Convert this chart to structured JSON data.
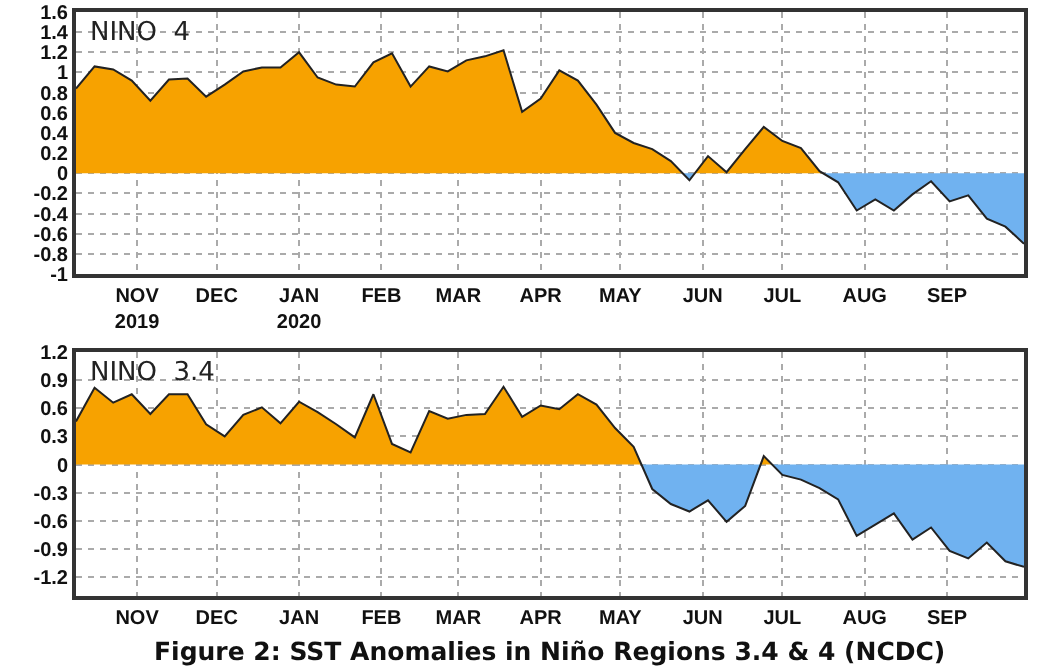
{
  "chart_data": [
    {
      "type": "area",
      "title": "NINO  4",
      "x": [
        "2019-10-09",
        "2019-10-16",
        "2019-10-23",
        "2019-10-30",
        "2019-11-06",
        "2019-11-13",
        "2019-11-20",
        "2019-11-27",
        "2019-12-04",
        "2019-12-11",
        "2019-12-18",
        "2019-12-25",
        "2020-01-01",
        "2020-01-08",
        "2020-01-15",
        "2020-01-22",
        "2020-01-29",
        "2020-02-05",
        "2020-02-12",
        "2020-02-19",
        "2020-02-26",
        "2020-03-04",
        "2020-03-11",
        "2020-03-18",
        "2020-03-25",
        "2020-04-01",
        "2020-04-08",
        "2020-04-15",
        "2020-04-22",
        "2020-04-29",
        "2020-05-06",
        "2020-05-13",
        "2020-05-20",
        "2020-05-27",
        "2020-06-03",
        "2020-06-10",
        "2020-06-17",
        "2020-06-24",
        "2020-07-01",
        "2020-07-08",
        "2020-07-15",
        "2020-07-22",
        "2020-07-29",
        "2020-08-05",
        "2020-08-12",
        "2020-08-19",
        "2020-08-26",
        "2020-09-02",
        "2020-09-09",
        "2020-09-16",
        "2020-09-23",
        "2020-09-30"
      ],
      "values": [
        0.84,
        1.06,
        1.03,
        0.92,
        0.72,
        0.93,
        0.94,
        0.76,
        0.88,
        1.01,
        1.05,
        1.05,
        1.2,
        0.95,
        0.88,
        0.86,
        1.1,
        1.19,
        0.86,
        1.06,
        1.01,
        1.12,
        1.16,
        1.22,
        0.61,
        0.74,
        1.02,
        0.92,
        0.68,
        0.4,
        0.3,
        0.24,
        0.12,
        -0.07,
        0.17,
        0.01,
        0.24,
        0.46,
        0.32,
        0.25,
        0.02,
        -0.09,
        -0.37,
        -0.26,
        -0.37,
        -0.21,
        -0.08,
        -0.28,
        -0.22,
        -0.45,
        -0.53,
        -0.7
      ],
      "colors": [
        "#f7a200",
        "#f7a200",
        "#f7a200",
        "#f7a200",
        "#f7a200",
        "#f7a200",
        "#f7a200",
        "#f7a200",
        "#f7a200",
        "#f7a200",
        "#f7a200",
        "#f7a200",
        "#f7a200",
        "#f7a200",
        "#f7a200",
        "#f7a200",
        "#f7a200",
        "#f7a200",
        "#f7a200",
        "#f7a200",
        "#f7a200",
        "#f7a200",
        "#f7a200",
        "#f7a200",
        "#f7a200",
        "#f7a200",
        "#f7a200",
        "#f7a200",
        "#f7a200",
        "#f7a200",
        "#f7a200",
        "#f7a200",
        "#f7a200",
        "#70b2f0",
        "#f7a200",
        "#f7a200",
        "#f7a200",
        "#f7a200",
        "#f7a200",
        "#f7a200",
        "#f7a200",
        "#70b2f0",
        "#70b2f0",
        "#70b2f0",
        "#70b2f0",
        "#70b2f0",
        "#70b2f0",
        "#70b2f0",
        "#70b2f0",
        "#70b2f0",
        "#70b2f0",
        "#70b2f0"
      ],
      "xlim": [
        "2019-10-09",
        "2020-09-30"
      ],
      "xticks": [
        {
          "value": "2019-11-01",
          "label": "NOV\n2019"
        },
        {
          "value": "2019-12-01",
          "label": "DEC"
        },
        {
          "value": "2020-01-01",
          "label": "JAN\n2020"
        },
        {
          "value": "2020-02-01",
          "label": "FEB"
        },
        {
          "value": "2020-03-01",
          "label": "MAR"
        },
        {
          "value": "2020-04-01",
          "label": "APR"
        },
        {
          "value": "2020-05-01",
          "label": "MAY"
        },
        {
          "value": "2020-06-01",
          "label": "JUN"
        },
        {
          "value": "2020-07-01",
          "label": "JUL"
        },
        {
          "value": "2020-08-01",
          "label": "AUG"
        },
        {
          "value": "2020-09-01",
          "label": "SEP"
        }
      ],
      "ylim": [
        -1,
        1.6
      ],
      "yticks": [
        {
          "value": -1,
          "label": "-1"
        },
        -0.8,
        -0.6,
        -0.4,
        -0.2,
        0,
        0.2,
        0.4,
        0.6,
        0.8,
        1,
        1.2,
        1.4,
        1.6
      ],
      "grid": true
    },
    {
      "type": "area",
      "title": "NINO  3.4",
      "x": [
        "2019-10-09",
        "2019-10-16",
        "2019-10-23",
        "2019-10-30",
        "2019-11-06",
        "2019-11-13",
        "2019-11-20",
        "2019-11-27",
        "2019-12-04",
        "2019-12-11",
        "2019-12-18",
        "2019-12-25",
        "2020-01-01",
        "2020-01-08",
        "2020-01-15",
        "2020-01-22",
        "2020-01-29",
        "2020-02-05",
        "2020-02-12",
        "2020-02-19",
        "2020-02-26",
        "2020-03-04",
        "2020-03-11",
        "2020-03-18",
        "2020-03-25",
        "2020-04-01",
        "2020-04-08",
        "2020-04-15",
        "2020-04-22",
        "2020-04-29",
        "2020-05-06",
        "2020-05-13",
        "2020-05-20",
        "2020-05-27",
        "2020-06-03",
        "2020-06-10",
        "2020-06-17",
        "2020-06-24",
        "2020-07-01",
        "2020-07-08",
        "2020-07-15",
        "2020-07-22",
        "2020-07-29",
        "2020-08-05",
        "2020-08-12",
        "2020-08-19",
        "2020-08-26",
        "2020-09-02",
        "2020-09-09",
        "2020-09-16",
        "2020-09-23",
        "2020-09-30"
      ],
      "values": [
        0.46,
        0.82,
        0.66,
        0.75,
        0.54,
        0.75,
        0.75,
        0.43,
        0.3,
        0.53,
        0.61,
        0.44,
        0.67,
        0.56,
        0.43,
        0.29,
        0.75,
        0.22,
        0.13,
        0.57,
        0.49,
        0.53,
        0.54,
        0.83,
        0.51,
        0.63,
        0.59,
        0.75,
        0.64,
        0.39,
        0.19,
        -0.26,
        -0.42,
        -0.5,
        -0.38,
        -0.61,
        -0.44,
        0.09,
        -0.11,
        -0.16,
        -0.25,
        -0.37,
        -0.76,
        -0.64,
        -0.52,
        -0.8,
        -0.67,
        -0.92,
        -1.0,
        -0.83,
        -1.03,
        -1.09
      ],
      "colors": [
        "#f7a200",
        "#f7a200",
        "#f7a200",
        "#f7a200",
        "#f7a200",
        "#f7a200",
        "#f7a200",
        "#f7a200",
        "#f7a200",
        "#f7a200",
        "#f7a200",
        "#f7a200",
        "#f7a200",
        "#f7a200",
        "#f7a200",
        "#f7a200",
        "#f7a200",
        "#f7a200",
        "#f7a200",
        "#f7a200",
        "#f7a200",
        "#f7a200",
        "#f7a200",
        "#f7a200",
        "#f7a200",
        "#f7a200",
        "#f7a200",
        "#f7a200",
        "#f7a200",
        "#f7a200",
        "#f7a200",
        "#70b2f0",
        "#70b2f0",
        "#70b2f0",
        "#70b2f0",
        "#70b2f0",
        "#70b2f0",
        "#f7a200",
        "#70b2f0",
        "#70b2f0",
        "#70b2f0",
        "#70b2f0",
        "#70b2f0",
        "#70b2f0",
        "#70b2f0",
        "#70b2f0",
        "#70b2f0",
        "#70b2f0",
        "#70b2f0",
        "#70b2f0",
        "#70b2f0",
        "#70b2f0"
      ],
      "xlim": [
        "2019-10-09",
        "2020-09-30"
      ],
      "xticks": [
        {
          "value": "2019-11-01",
          "label": "NOV"
        },
        {
          "value": "2019-12-01",
          "label": "DEC"
        },
        {
          "value": "2020-01-01",
          "label": "JAN"
        },
        {
          "value": "2020-02-01",
          "label": "FEB"
        },
        {
          "value": "2020-03-01",
          "label": "MAR"
        },
        {
          "value": "2020-04-01",
          "label": "APR"
        },
        {
          "value": "2020-05-01",
          "label": "MAY"
        },
        {
          "value": "2020-06-01",
          "label": "JUN"
        },
        {
          "value": "2020-07-01",
          "label": "JUL"
        },
        {
          "value": "2020-08-01",
          "label": "AUG"
        },
        {
          "value": "2020-09-01",
          "label": "SEP"
        }
      ],
      "ylim": [
        -1.4,
        1.2
      ],
      "yticks": [
        -1.2,
        -0.9,
        -0.6,
        -0.3,
        0,
        0.3,
        0.6,
        0.9,
        1.2
      ],
      "grid": true,
      "annotations": [
        "Figure 2: SST Anomalies in Niño Regions 3.4 & 4 (NCDC)"
      ]
    }
  ]
}
